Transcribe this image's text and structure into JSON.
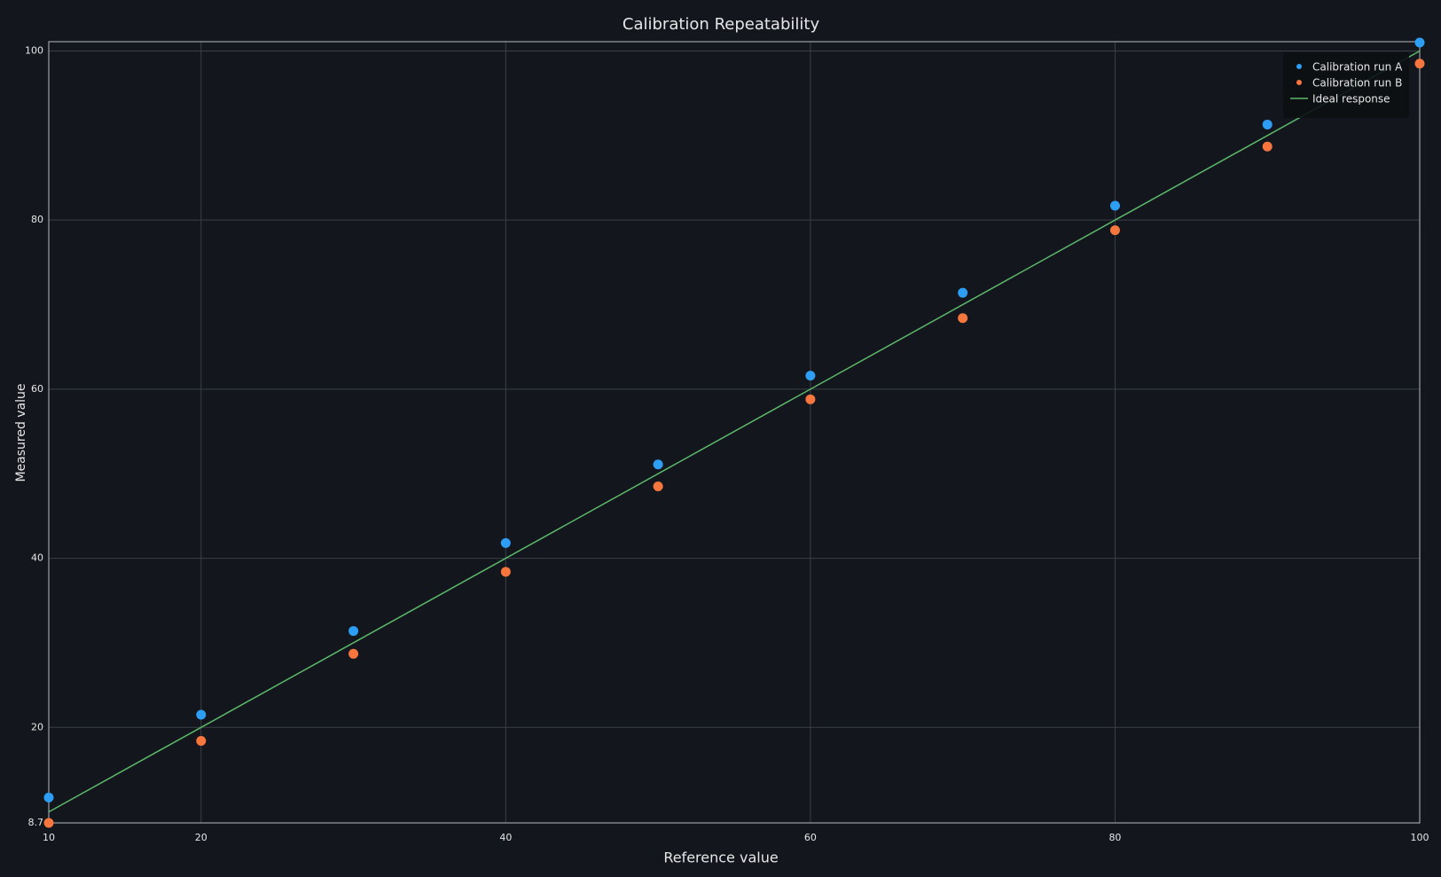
{
  "chart_data": {
    "type": "scatter",
    "title": "Calibration Repeatability",
    "x_label": "Reference value",
    "y_label": "Measured value",
    "xlim": [
      10,
      100
    ],
    "ylim": [
      8.7,
      101.1
    ],
    "xticks": [
      10,
      20,
      40,
      60,
      80,
      100
    ],
    "yticks": [
      8.7,
      20,
      40,
      60,
      80,
      100
    ],
    "grid": true,
    "legend": "upper right",
    "series": [
      {
        "name": "Calibration run A",
        "color": "#2e9df4",
        "mode": "markers",
        "x": [
          10,
          20,
          30,
          40,
          50,
          60,
          70,
          80,
          90,
          100
        ],
        "values": [
          11.7,
          21.5,
          31.4,
          41.8,
          51.1,
          61.6,
          71.4,
          81.7,
          91.3,
          101.0
        ]
      },
      {
        "name": "Calibration run B",
        "color": "#f7763e",
        "mode": "markers",
        "x": [
          10,
          20,
          30,
          40,
          50,
          60,
          70,
          80,
          90,
          100
        ],
        "values": [
          8.7,
          18.4,
          28.7,
          38.4,
          48.5,
          58.8,
          68.4,
          78.8,
          88.7,
          98.5
        ]
      },
      {
        "name": "Ideal response",
        "color": "#5cb86a",
        "mode": "lines",
        "x": [
          10,
          100
        ],
        "values": [
          10,
          100
        ]
      }
    ]
  }
}
